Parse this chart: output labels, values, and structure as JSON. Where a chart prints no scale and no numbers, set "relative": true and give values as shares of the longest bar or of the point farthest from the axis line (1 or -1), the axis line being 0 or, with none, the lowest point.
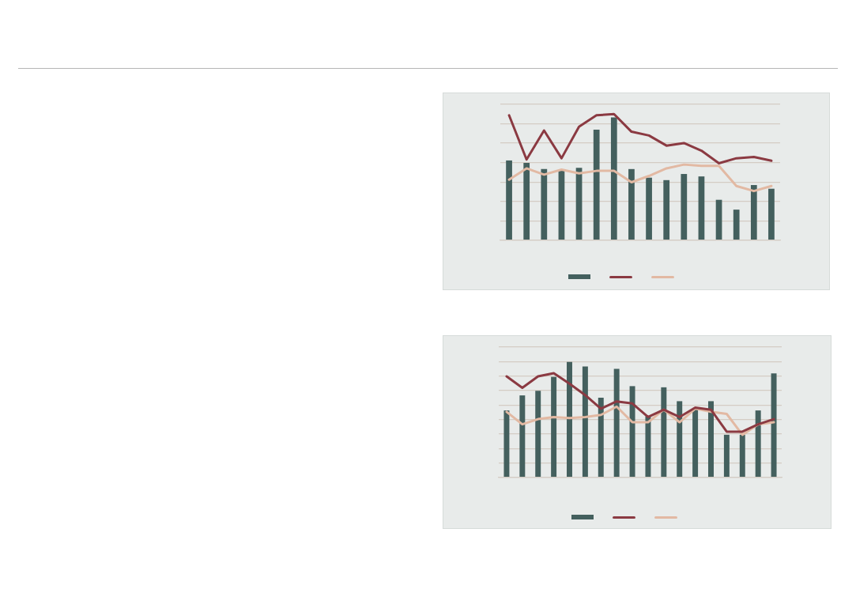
{
  "chart_data": [
    {
      "type": "bar",
      "relative": true,
      "grid": "y",
      "categories": [
        null,
        null,
        null,
        null,
        null,
        null,
        null,
        null,
        null,
        null,
        null,
        null,
        null,
        null,
        null,
        null
      ],
      "series": [
        {
          "color": "#44605e",
          "values": [
            0.65,
            0.63,
            0.58,
            0.57,
            0.59,
            0.9,
            1,
            0.58,
            0.51,
            0.49,
            0.54,
            0.52,
            0.33,
            0.25,
            0.45,
            0.42
          ]
        }
      ]
    },
    {
      "type": "line",
      "relative": true,
      "categories": [
        null,
        null,
        null,
        null,
        null,
        null,
        null,
        null,
        null,
        null,
        null,
        null,
        null,
        null,
        null,
        null
      ],
      "series": [
        {
          "color": "#8b3a42",
          "values": [
            0.99,
            0.64,
            0.87,
            0.65,
            0.9,
            0.99,
            1,
            0.86,
            0.83,
            0.75,
            0.77,
            0.71,
            0.61,
            0.65,
            0.66,
            0.63
          ]
        },
        {
          "color": "#e2b9a3",
          "values": [
            0.48,
            0.57,
            0.52,
            0.56,
            0.53,
            0.55,
            0.55,
            0.46,
            0.51,
            0.57,
            0.6,
            0.59,
            0.59,
            0.43,
            0.39,
            0.43
          ]
        }
      ]
    },
    {
      "type": "bar",
      "relative": true,
      "grid": "y",
      "categories": [
        null,
        null,
        null,
        null,
        null,
        null,
        null,
        null,
        null,
        null,
        null,
        null,
        null,
        null,
        null,
        null,
        null,
        null
      ],
      "series": [
        {
          "color": "#44605e",
          "values": [
            0.58,
            0.71,
            0.75,
            0.87,
            1,
            0.96,
            0.69,
            0.94,
            0.79,
            0.53,
            0.78,
            0.66,
            0.59,
            0.66,
            0.37,
            0.37,
            0.58,
            0.9
          ]
        }
      ]
    },
    {
      "type": "line",
      "relative": true,
      "categories": [
        null,
        null,
        null,
        null,
        null,
        null,
        null,
        null,
        null,
        null,
        null,
        null,
        null,
        null,
        null,
        null,
        null,
        null
      ],
      "series": [
        {
          "color": "#8b3a42",
          "values": [
            0.97,
            0.86,
            0.97,
            1,
            0.9,
            0.79,
            0.66,
            0.73,
            0.71,
            0.58,
            0.65,
            0.58,
            0.67,
            0.65,
            0.44,
            0.44,
            0.51,
            0.56
          ]
        },
        {
          "color": "#e2b9a3",
          "values": [
            0.63,
            0.51,
            0.56,
            0.58,
            0.57,
            0.58,
            0.6,
            0.68,
            0.53,
            0.53,
            0.65,
            0.53,
            0.66,
            0.63,
            0.61,
            0.41,
            0.51,
            0.53
          ]
        }
      ]
    }
  ]
}
